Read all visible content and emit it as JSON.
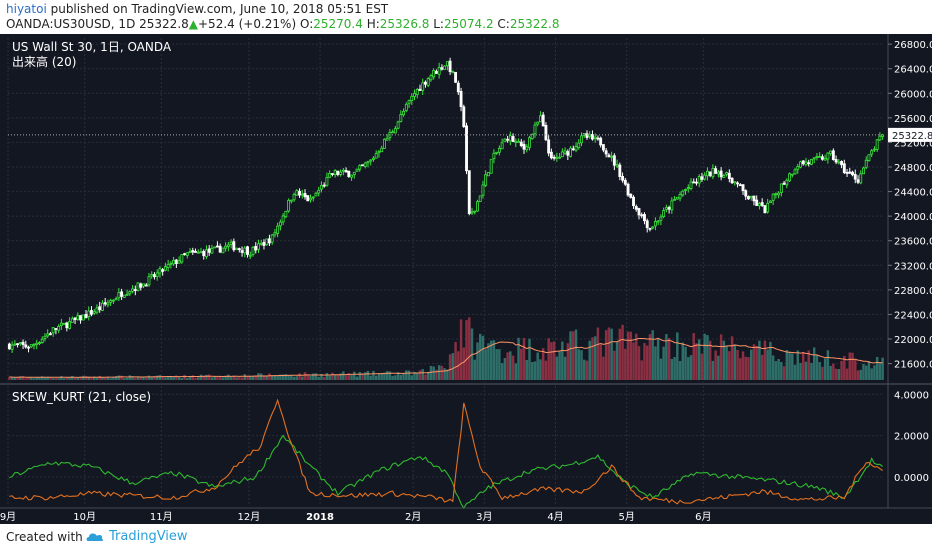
{
  "header": {
    "user": "hiyatoi",
    "published_text": " published on TradingView.com, June 10, 2018 05:51 EST",
    "symbol": "OANDA:US30USD, 1D",
    "last": "25322.8",
    "change_arrow": "▲",
    "change": "+52.4 (+0.21%)",
    "o_label": "O:",
    "o_val": "25270.4",
    "h_label": "H:",
    "h_val": "25326.8",
    "l_label": "L:",
    "l_val": "25074.2",
    "c_label": "C:",
    "c_val": "25322.8"
  },
  "legend": {
    "main_title": "US Wall St 30, 1日, OANDA",
    "volume_label": "出来高 (20)",
    "indicator_label": "SKEW_KURT (21, close)"
  },
  "footer": {
    "created_with": "Created with",
    "brand": "TradingView"
  },
  "colors": {
    "background": "#131722",
    "up": "#39e639",
    "down": "#ffffff",
    "vol_up": "#2f6f6a",
    "vol_down": "#8a3042",
    "vol_ma": "#ff9466",
    "skew": "#2fb82f",
    "kurt": "#e3701e",
    "grid": "#2a2e39",
    "axis_text": "#ffffff",
    "brand": "#2a9fd8"
  },
  "chart_data": [
    {
      "type": "candlestick",
      "title": "US Wall St 30, 1日, OANDA",
      "xlabel": "",
      "ylabel": "",
      "ylim": [
        21300,
        26900
      ],
      "y_ticks": [
        26800,
        26400,
        26000,
        25600,
        25200,
        24800,
        24400,
        24000,
        23600,
        23200,
        22800,
        22400,
        22000,
        21600
      ],
      "x_ticks": [
        "9月",
        "10月",
        "11月",
        "12月",
        "2018",
        "2月",
        "3月",
        "4月",
        "5月",
        "6月"
      ],
      "last_price_label": "25322.8",
      "close_path": [
        [
          0,
          21900
        ],
        [
          8,
          21880
        ],
        [
          16,
          22150
        ],
        [
          24,
          22300
        ],
        [
          33,
          22500
        ],
        [
          41,
          22750
        ],
        [
          49,
          22900
        ],
        [
          57,
          23150
        ],
        [
          65,
          23380
        ],
        [
          73,
          23420
        ],
        [
          81,
          23520
        ],
        [
          88,
          23420
        ],
        [
          96,
          23650
        ],
        [
          104,
          24400
        ],
        [
          110,
          24250
        ],
        [
          118,
          24700
        ],
        [
          126,
          24700
        ],
        [
          132,
          24900
        ],
        [
          140,
          25400
        ],
        [
          148,
          26000
        ],
        [
          154,
          26300
        ],
        [
          160,
          26500
        ],
        [
          163,
          26200
        ],
        [
          166,
          25500
        ],
        [
          168,
          24000
        ],
        [
          170,
          24100
        ],
        [
          176,
          24900
        ],
        [
          182,
          25300
        ],
        [
          188,
          25100
        ],
        [
          194,
          25600
        ],
        [
          198,
          24900
        ],
        [
          204,
          25050
        ],
        [
          210,
          25300
        ],
        [
          216,
          25200
        ],
        [
          222,
          24800
        ],
        [
          228,
          24200
        ],
        [
          234,
          23800
        ],
        [
          240,
          24100
        ],
        [
          246,
          24400
        ],
        [
          252,
          24600
        ],
        [
          258,
          24750
        ],
        [
          264,
          24600
        ],
        [
          270,
          24300
        ],
        [
          276,
          24100
        ],
        [
          282,
          24500
        ],
        [
          288,
          24850
        ],
        [
          294,
          24900
        ],
        [
          300,
          25000
        ],
        [
          306,
          24700
        ],
        [
          310,
          24600
        ],
        [
          315,
          25050
        ],
        [
          319,
          25322.8
        ]
      ],
      "volume_label": "出来高 (20)",
      "volume_profile": [
        [
          0,
          0.03
        ],
        [
          60,
          0.04
        ],
        [
          100,
          0.06
        ],
        [
          150,
          0.08
        ],
        [
          160,
          0.2
        ],
        [
          165,
          0.6
        ],
        [
          170,
          0.45
        ],
        [
          180,
          0.35
        ],
        [
          200,
          0.38
        ],
        [
          220,
          0.45
        ],
        [
          240,
          0.42
        ],
        [
          260,
          0.38
        ],
        [
          280,
          0.3
        ],
        [
          300,
          0.25
        ],
        [
          319,
          0.18
        ]
      ]
    },
    {
      "type": "line",
      "title": "SKEW_KURT (21, close)",
      "xlabel": "",
      "ylabel": "",
      "ylim": [
        -1.6,
        4.4
      ],
      "y_ticks": [
        4.0,
        2.0,
        0.0
      ],
      "y_tick_labels": [
        "4.0000",
        "2.0000",
        "0.0000"
      ],
      "series": [
        {
          "color": "#2fb82f",
          "values": [
            [
              0,
              0.0
            ],
            [
              15,
              0.7
            ],
            [
              30,
              0.5
            ],
            [
              45,
              -0.3
            ],
            [
              60,
              0.2
            ],
            [
              75,
              -0.5
            ],
            [
              90,
              0.0
            ],
            [
              100,
              2.0
            ],
            [
              110,
              0.5
            ],
            [
              120,
              -0.8
            ],
            [
              135,
              0.3
            ],
            [
              150,
              1.0
            ],
            [
              160,
              0.2
            ],
            [
              166,
              -1.5
            ],
            [
              175,
              -0.5
            ],
            [
              190,
              0.3
            ],
            [
              205,
              0.6
            ],
            [
              215,
              1.0
            ],
            [
              225,
              -0.3
            ],
            [
              235,
              -1.0
            ],
            [
              250,
              0.2
            ],
            [
              265,
              0.0
            ],
            [
              280,
              -0.2
            ],
            [
              295,
              -0.5
            ],
            [
              305,
              -1.0
            ],
            [
              315,
              0.8
            ],
            [
              319,
              0.4
            ]
          ]
        },
        {
          "color": "#e3701e",
          "values": [
            [
              0,
              -1.0
            ],
            [
              15,
              -1.0
            ],
            [
              30,
              -0.8
            ],
            [
              45,
              -0.9
            ],
            [
              60,
              -1.0
            ],
            [
              75,
              -0.5
            ],
            [
              85,
              0.8
            ],
            [
              92,
              1.5
            ],
            [
              98,
              3.8
            ],
            [
              103,
              1.6
            ],
            [
              110,
              -0.8
            ],
            [
              125,
              -0.9
            ],
            [
              140,
              -0.8
            ],
            [
              155,
              -1.0
            ],
            [
              162,
              -1.2
            ],
            [
              166,
              3.5
            ],
            [
              172,
              0.5
            ],
            [
              180,
              -1.0
            ],
            [
              195,
              -0.6
            ],
            [
              210,
              -0.7
            ],
            [
              220,
              0.5
            ],
            [
              230,
              -1.0
            ],
            [
              245,
              -1.2
            ],
            [
              260,
              -1.0
            ],
            [
              275,
              -0.7
            ],
            [
              290,
              -1.1
            ],
            [
              305,
              -1.0
            ],
            [
              313,
              0.8
            ],
            [
              319,
              0.3
            ]
          ]
        }
      ]
    }
  ]
}
